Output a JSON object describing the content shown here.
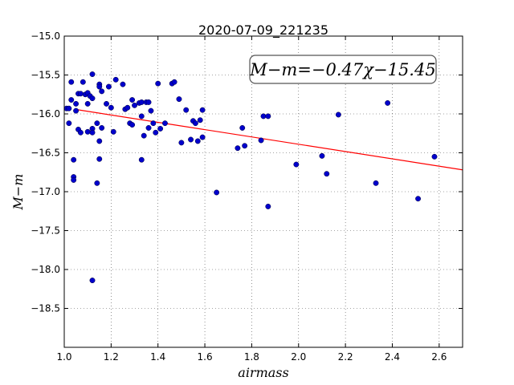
{
  "chart_data": {
    "type": "scatter",
    "title": "2020-07-09_221235",
    "xlabel": "airmass",
    "ylabel": "M−m",
    "xlim": [
      1.0,
      2.7
    ],
    "ylim": [
      -15.0,
      -19.0
    ],
    "y_inverted": true,
    "grid": true,
    "x_ticks": [
      "1.0",
      "1.2",
      "1.4",
      "1.6",
      "1.8",
      "2.0",
      "2.2",
      "2.4",
      "2.6"
    ],
    "y_ticks": [
      "−15.0",
      "−15.5",
      "−16.0",
      "−16.5",
      "−17.0",
      "−17.5",
      "−18.0",
      "−18.5"
    ],
    "annotation": "M−m=−0.47χ−15.45",
    "point_color": "#0000cc",
    "fit_color": "#ff0000",
    "fit": {
      "slope": -0.47,
      "intercept": -15.45,
      "x_range": [
        1.05,
        2.7
      ]
    },
    "points": [
      [
        1.01,
        -15.93
      ],
      [
        1.02,
        -15.93
      ],
      [
        1.02,
        -16.12
      ],
      [
        1.03,
        -15.59
      ],
      [
        1.03,
        -15.82
      ],
      [
        1.04,
        -16.59
      ],
      [
        1.04,
        -16.81
      ],
      [
        1.04,
        -16.85
      ],
      [
        1.05,
        -15.87
      ],
      [
        1.05,
        -15.96
      ],
      [
        1.06,
        -15.74
      ],
      [
        1.06,
        -16.2
      ],
      [
        1.07,
        -16.24
      ],
      [
        1.07,
        -15.74
      ],
      [
        1.08,
        -15.59
      ],
      [
        1.09,
        -15.75
      ],
      [
        1.1,
        -15.73
      ],
      [
        1.1,
        -15.87
      ],
      [
        1.1,
        -16.23
      ],
      [
        1.11,
        -15.77
      ],
      [
        1.12,
        -15.49
      ],
      [
        1.12,
        -15.8
      ],
      [
        1.12,
        -16.19
      ],
      [
        1.12,
        -16.24
      ],
      [
        1.12,
        -18.14
      ],
      [
        1.14,
        -16.12
      ],
      [
        1.14,
        -16.89
      ],
      [
        1.15,
        -15.62
      ],
      [
        1.15,
        -15.65
      ],
      [
        1.15,
        -16.35
      ],
      [
        1.15,
        -16.58
      ],
      [
        1.16,
        -15.71
      ],
      [
        1.16,
        -16.18
      ],
      [
        1.18,
        -15.87
      ],
      [
        1.19,
        -15.65
      ],
      [
        1.2,
        -15.92
      ],
      [
        1.21,
        -16.23
      ],
      [
        1.22,
        -15.56
      ],
      [
        1.25,
        -15.62
      ],
      [
        1.26,
        -15.94
      ],
      [
        1.27,
        -15.92
      ],
      [
        1.28,
        -16.12
      ],
      [
        1.29,
        -16.14
      ],
      [
        1.29,
        -15.82
      ],
      [
        1.3,
        -15.89
      ],
      [
        1.32,
        -15.86
      ],
      [
        1.33,
        -16.03
      ],
      [
        1.33,
        -15.85
      ],
      [
        1.33,
        -16.59
      ],
      [
        1.34,
        -16.28
      ],
      [
        1.35,
        -15.85
      ],
      [
        1.36,
        -15.85
      ],
      [
        1.36,
        -16.18
      ],
      [
        1.37,
        -15.96
      ],
      [
        1.38,
        -16.12
      ],
      [
        1.39,
        -16.24
      ],
      [
        1.4,
        -15.61
      ],
      [
        1.41,
        -16.19
      ],
      [
        1.43,
        -16.12
      ],
      [
        1.46,
        -15.61
      ],
      [
        1.47,
        -15.59
      ],
      [
        1.49,
        -15.81
      ],
      [
        1.5,
        -16.37
      ],
      [
        1.52,
        -15.95
      ],
      [
        1.54,
        -16.33
      ],
      [
        1.55,
        -16.09
      ],
      [
        1.56,
        -16.12
      ],
      [
        1.57,
        -16.35
      ],
      [
        1.58,
        -16.08
      ],
      [
        1.59,
        -15.95
      ],
      [
        1.59,
        -16.3
      ],
      [
        1.65,
        -17.01
      ],
      [
        1.74,
        -16.44
      ],
      [
        1.76,
        -16.18
      ],
      [
        1.77,
        -16.41
      ],
      [
        1.84,
        -16.34
      ],
      [
        1.85,
        -16.03
      ],
      [
        1.87,
        -16.03
      ],
      [
        1.87,
        -17.19
      ],
      [
        1.99,
        -16.65
      ],
      [
        2.1,
        -16.54
      ],
      [
        2.12,
        -16.77
      ],
      [
        2.17,
        -16.01
      ],
      [
        2.33,
        -16.89
      ],
      [
        2.38,
        -15.86
      ],
      [
        2.51,
        -17.09
      ],
      [
        2.58,
        -16.55
      ]
    ]
  }
}
